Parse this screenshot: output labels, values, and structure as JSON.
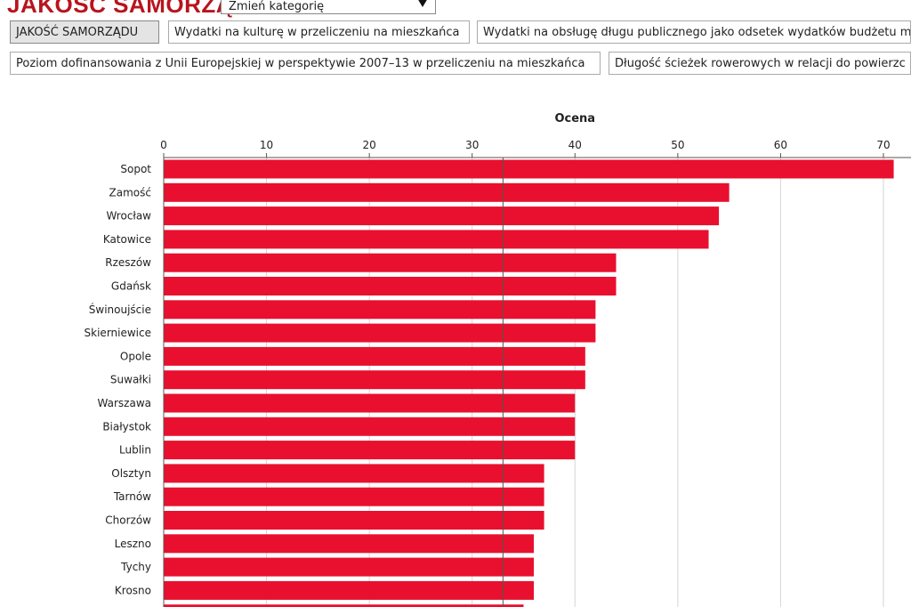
{
  "header": {
    "app_title": "JAKOŚĆ SAMORZĄDU",
    "category_select_value": "Zmień kategorię",
    "accent_color": "#b8141e"
  },
  "tabs": [
    {
      "label": "JAKOŚĆ SAMORZĄDU",
      "active": true
    },
    {
      "label": "Wydatki na kulturę w przeliczeniu na mieszkańca",
      "active": false
    },
    {
      "label": "Wydatki na obsługę długu publicznego jako odsetek wydatków budżetu m",
      "active": false
    },
    {
      "label": "Poziom dofinansowania z Unii Europejskiej w perspektywie 2007–13 w przeliczeniu na mieszkańca",
      "active": false
    },
    {
      "label": "Długość ścieżek rowerowych w relacji do powierzc",
      "active": false
    }
  ],
  "chart_data": {
    "type": "bar",
    "orientation": "horizontal",
    "title": "Ocena",
    "xlim": [
      0,
      72
    ],
    "xticks": [
      0,
      10,
      20,
      30,
      40,
      50,
      60,
      70
    ],
    "grid": true,
    "bar_color": "#e8102e",
    "reference_line": 33,
    "categories": [
      "Sopot",
      "Zamość",
      "Wrocław",
      "Katowice",
      "Rzeszów",
      "Gdańsk",
      "Świnoujście",
      "Skierniewice",
      "Opole",
      "Suwałki",
      "Warszawa",
      "Białystok",
      "Lublin",
      "Olsztyn",
      "Tarnów",
      "Chorzów",
      "Leszno",
      "Tychy",
      "Krosno"
    ],
    "values": [
      71,
      55,
      54,
      53,
      44,
      44,
      42,
      42,
      41,
      41,
      40,
      40,
      40,
      37,
      37,
      37,
      36,
      36,
      36
    ]
  }
}
